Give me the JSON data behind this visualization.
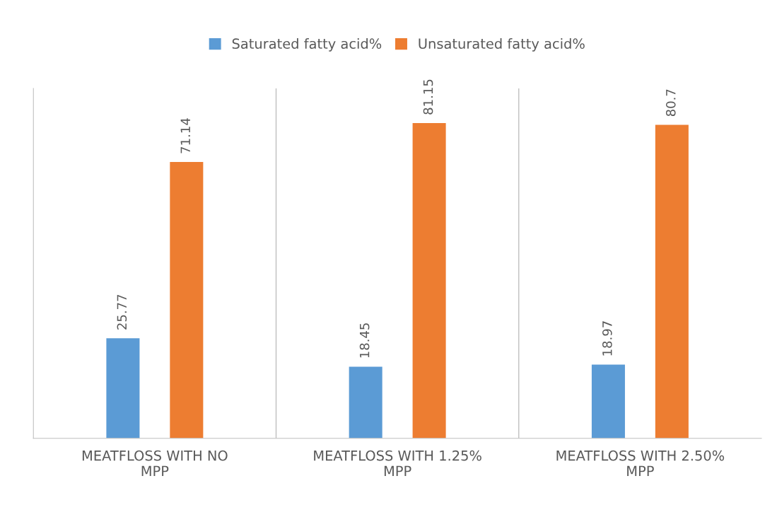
{
  "chart_data": {
    "type": "bar",
    "categories": [
      "MEATFLOSS WITH NO MPP",
      "MEATFLOSS WITH 1.25% MPP",
      "MEATFLOSS WITH 2.50% MPP"
    ],
    "series": [
      {
        "name": "Saturated fatty acid%",
        "color": "#5b9bd5",
        "values": [
          25.77,
          18.45,
          18.97
        ]
      },
      {
        "name": "Unsaturated fatty acid%",
        "color": "#ed7d31",
        "values": [
          71.14,
          81.15,
          80.7
        ]
      }
    ],
    "data_labels": true,
    "legend": "top",
    "grid": "x"
  }
}
